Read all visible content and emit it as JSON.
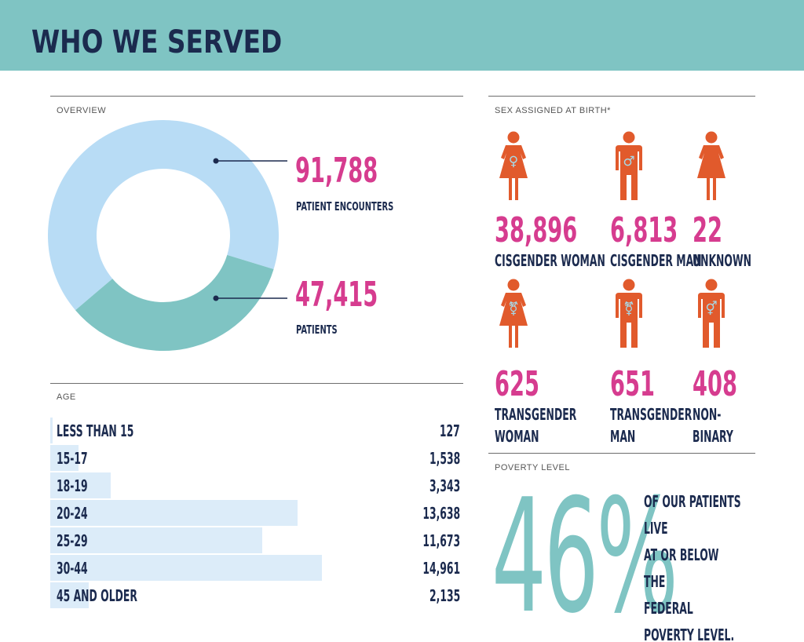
{
  "header": {
    "title": "WHO WE SERVED",
    "background": "#7fc4c3"
  },
  "overview": {
    "label": "OVERVIEW",
    "encounters": {
      "value": "91,788",
      "label": "PATIENT ENCOUNTERS"
    },
    "patients": {
      "value": "47,415",
      "label": "PATIENTS"
    }
  },
  "age": {
    "label": "AGE",
    "rows": [
      {
        "label": "LESS THAN 15",
        "value": "127"
      },
      {
        "label": "15-17",
        "value": "1,538"
      },
      {
        "label": "18-19",
        "value": "3,343"
      },
      {
        "label": "20-24",
        "value": "13,638"
      },
      {
        "label": "25-29",
        "value": "11,673"
      },
      {
        "label": "30-44",
        "value": "14,961"
      },
      {
        "label": "45 AND OLDER",
        "value": "2,135"
      }
    ]
  },
  "sex": {
    "label": "SEX ASSIGNED AT BIRTH*",
    "items": [
      {
        "count": "38,896",
        "label": "CISGENDER WOMAN",
        "icon": "female-figure-icon",
        "symbol": "♀",
        "dress": true
      },
      {
        "count": "6,813",
        "label": "CISGENDER MAN",
        "icon": "male-figure-icon",
        "symbol": "♂",
        "dress": false
      },
      {
        "count": "22",
        "label": "UNKNOWN",
        "icon": "unknown-figure-icon",
        "symbol": "",
        "dress": true
      },
      {
        "count": "625",
        "label": "TRANSGENDER\nWOMAN",
        "icon": "transgender-woman-figure-icon",
        "symbol": "⚧",
        "dress": true
      },
      {
        "count": "651",
        "label": "TRANSGENDER\nMAN",
        "icon": "transgender-man-figure-icon",
        "symbol": "⚧",
        "dress": false
      },
      {
        "count": "408",
        "label": "NON-BINARY",
        "icon": "non-binary-figure-icon",
        "symbol": "⚥",
        "dress": false
      }
    ]
  },
  "poverty": {
    "label": "POVERTY LEVEL",
    "percent": "46%",
    "text": "OF OUR PATIENTS LIVE\nAT OR BELOW THE\nFEDERAL POVERTY LEVEL."
  },
  "colors": {
    "teal": "#7fc4c3",
    "light_blue": "#b8dcf5",
    "pink": "#d63c8f",
    "navy": "#1b2a4e",
    "orange": "#e15a2c",
    "bar": "#dcecf9"
  },
  "chart_data": [
    {
      "type": "pie",
      "title": "OVERVIEW",
      "categories": [
        "PATIENT ENCOUNTERS",
        "PATIENTS"
      ],
      "values": [
        91788,
        47415
      ]
    },
    {
      "type": "bar",
      "title": "AGE",
      "categories": [
        "LESS THAN 15",
        "15-17",
        "18-19",
        "20-24",
        "25-29",
        "30-44",
        "45 AND OLDER"
      ],
      "values": [
        127,
        1538,
        3343,
        13638,
        11673,
        14961,
        2135
      ]
    },
    {
      "type": "table",
      "title": "SEX ASSIGNED AT BIRTH*",
      "categories": [
        "CISGENDER WOMAN",
        "CISGENDER MAN",
        "UNKNOWN",
        "TRANSGENDER WOMAN",
        "TRANSGENDER MAN",
        "NON-BINARY"
      ],
      "values": [
        38896,
        6813,
        22,
        625,
        651,
        408
      ]
    }
  ]
}
